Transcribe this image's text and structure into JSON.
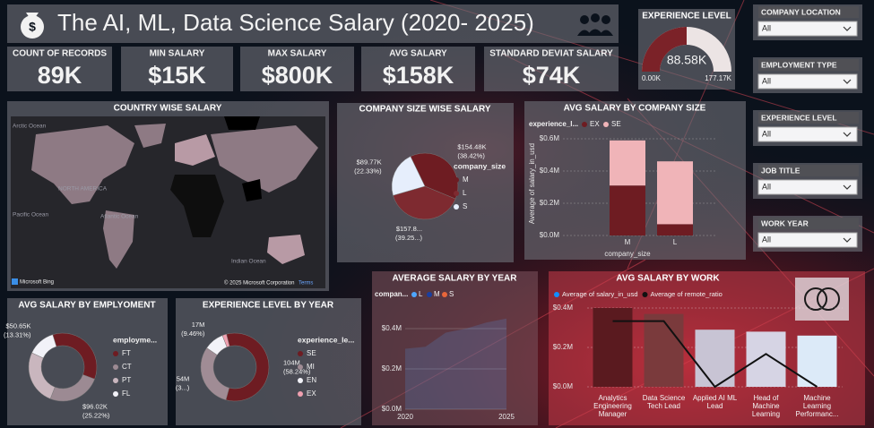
{
  "header": {
    "title": "The AI, ML, Data Science Salary (2020- 2025)"
  },
  "kpis": [
    {
      "label": "COUNT OF RECORDS",
      "value": "89K"
    },
    {
      "label": "MIN SALARY",
      "value": "$15K"
    },
    {
      "label": "MAX SALARY",
      "value": "$800K"
    },
    {
      "label": "AVG SALARY",
      "value": "$158K"
    },
    {
      "label": "STANDARD DEVIAT SALARY",
      "value": "$74K"
    }
  ],
  "slicers": [
    {
      "title": "COMPANY LOCATION",
      "value": "All"
    },
    {
      "title": "EMPLOYMENT TYPE",
      "value": "All"
    },
    {
      "title": "EXPERIENCE LEVEL",
      "value": "All"
    },
    {
      "title": "JOB TITLE",
      "value": "All"
    },
    {
      "title": "WORK YEAR",
      "value": "All"
    }
  ],
  "map": {
    "title": "COUNTRY WISE SALARY",
    "labels": [
      "Arctic Ocean",
      "NORTH AMERICA",
      "Atlantic Ocean",
      "Pacific Ocean",
      "Indian Ocean"
    ],
    "attribution": "Microsoft Bing",
    "copyright": "© 2025 Microsoft Corporation",
    "terms": "Terms"
  },
  "chart_data": [
    {
      "type": "gauge",
      "title": "EXPERIENCE LEVEL",
      "values": [
        88.58
      ],
      "value_labels": [
        "88.58K"
      ],
      "ylim": [
        0,
        177.17
      ],
      "yticks": [
        {
          "value": 0,
          "label": "0.00K"
        },
        {
          "value": 177.17,
          "label": "177.17K"
        }
      ],
      "color": "#7b2228",
      "track_color": "#ece4e4"
    },
    {
      "type": "pie",
      "title": "COMPANY SIZE WISE SALARY",
      "legend_title": "company_size",
      "categories": [
        "M",
        "L",
        "S"
      ],
      "values": [
        38.42,
        39.25,
        22.33
      ],
      "value_labels": [
        [
          "$154.48K",
          "(38.42%)"
        ],
        [
          "$157.8...",
          "(39.25...)"
        ],
        [
          "$89.77K",
          "(22.33%)"
        ]
      ],
      "colors": [
        "#6e1c22",
        "#7e2a30",
        "#e6eefc"
      ]
    },
    {
      "type": "stacked_bar",
      "title": "AVG SALARY BY COMPANY SIZE",
      "legend_title": "experience_l...",
      "x_label": "company_size",
      "y_label": "Average of salary_in_usd",
      "categories": [
        "M",
        "L"
      ],
      "series": [
        {
          "name": "EX",
          "color": "#6e1c22",
          "values": [
            0.31,
            0.07
          ]
        },
        {
          "name": "SE",
          "color": "#f0b4b8",
          "values": [
            0.28,
            0.39
          ]
        }
      ],
      "ylim": [
        0,
        0.65
      ],
      "yticks": [
        {
          "value": 0,
          "label": "$0.0M"
        },
        {
          "value": 0.2,
          "label": "$0.2M"
        },
        {
          "value": 0.4,
          "label": "$0.4M"
        },
        {
          "value": 0.6,
          "label": "$0.6M"
        }
      ],
      "grid": true
    },
    {
      "type": "donut",
      "title": "AVG SALARY BY EMPLYOMENT",
      "legend_title": "employme...",
      "categories": [
        "FT",
        "CT",
        "PT",
        "FL"
      ],
      "values": [
        35.5,
        25.22,
        25.97,
        13.31
      ],
      "value_labels": [
        null,
        [
          "$96.02K",
          "(25.22%)"
        ],
        null,
        [
          "$50.65K",
          "(13.31%)"
        ]
      ],
      "colors": [
        "#6e1c22",
        "#9c8a93",
        "#c9b6be",
        "#f2f2f8"
      ]
    },
    {
      "type": "donut",
      "title": "EXPERIENCE LEVEL BY YEAR",
      "legend_title": "experience_le...",
      "categories": [
        "SE",
        "MI",
        "EN",
        "EX"
      ],
      "values": [
        58.24,
        30.3,
        9.46,
        2.0
      ],
      "value_labels": [
        [
          "104M",
          "(58.24%)"
        ],
        [
          "54M",
          "(3...)"
        ],
        [
          "17M",
          "(9.46%)"
        ],
        null
      ],
      "colors": [
        "#6e1c22",
        "#a08c95",
        "#f2f2f8",
        "#f0a0b0"
      ]
    },
    {
      "type": "area",
      "title": "AVERAGE SALARY BY YEAR",
      "legend_title": "compan...",
      "x": [
        2020,
        2021,
        2022,
        2023,
        2024,
        2025
      ],
      "xlim": [
        2020,
        2025
      ],
      "xticks": [
        2020,
        2025
      ],
      "series": [
        {
          "name": "L",
          "color": "#4ea6ff",
          "values": [
            0.3,
            0.31,
            0.38,
            0.4,
            0.43,
            0.45
          ]
        },
        {
          "name": "M",
          "color": "#1a3fa0",
          "values": [
            null,
            null,
            null,
            null,
            null,
            null
          ]
        },
        {
          "name": "S",
          "color": "#e8663a",
          "values": [
            null,
            null,
            null,
            null,
            null,
            null
          ]
        }
      ],
      "ylim": [
        0,
        0.47
      ],
      "yticks": [
        {
          "value": 0,
          "label": "$0.0M"
        },
        {
          "value": 0.2,
          "label": "$0.2M"
        },
        {
          "value": 0.4,
          "label": "$0.4M"
        }
      ]
    },
    {
      "type": "combo",
      "title": "AVG SALARY BY WORK",
      "categories": [
        "Analytics Engineering Manager",
        "Data Science Tech Lead",
        "Applied AI ML Lead",
        "Head of Machine Learning",
        "Machine Learning Performanc..."
      ],
      "series": [
        {
          "name": "Average of salary_in_usd",
          "color": "#118dff",
          "values": [
            0.4,
            0.37,
            0.29,
            0.28,
            0.26
          ],
          "colors": [
            "#5a1a1f",
            "#7a3a3c",
            "#c8c4d4",
            "#d6d4e4",
            "#dceaf8"
          ]
        },
        {
          "name": "Average of remote_ratio",
          "color": "#111111",
          "axis": "y2",
          "values": [
            100,
            100,
            0,
            50,
            0
          ]
        }
      ],
      "ylim": [
        0,
        0.45
      ],
      "yticks": [
        {
          "value": 0,
          "label": "$0.0M"
        },
        {
          "value": 0.2,
          "label": "$0.2M"
        },
        {
          "value": 0.4,
          "label": "$0.4M"
        }
      ],
      "y2lim": [
        0,
        135
      ]
    }
  ]
}
